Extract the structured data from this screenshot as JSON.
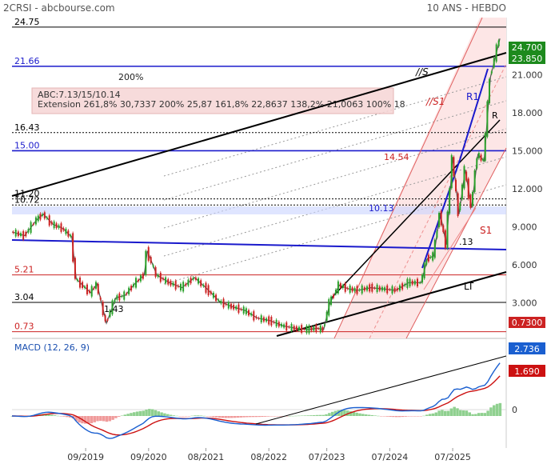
{
  "header": {
    "symbol": "2CRSI - abcbourse.com",
    "period": "10 ANS - HEBDO"
  },
  "chart_data": [
    {
      "type": "line",
      "name": "price",
      "y_ticks": [
        3,
        6,
        9,
        12,
        15,
        18,
        21
      ],
      "ylim": [
        0.2,
        25.5
      ],
      "x_tick_labels": [
        "09/2019",
        "09/2020",
        "08/2021",
        "08/2022",
        "07/2023",
        "07/2024",
        "07/2025"
      ],
      "x_tick_years": [
        2019.67,
        2020.67,
        2021.58,
        2022.58,
        2023.5,
        2024.5,
        2025.5
      ],
      "xlim": [
        2018.5,
        2026.35
      ],
      "series": [
        {
          "x": [
            2018.5,
            2018.7,
            2018.9,
            2019.0,
            2019.15,
            2019.3,
            2019.45,
            2019.52,
            2019.6,
            2019.75,
            2019.85,
            2020.0,
            2020.15,
            2020.3,
            2020.45,
            2020.6,
            2020.65,
            2020.8,
            2021.0,
            2021.2,
            2021.4,
            2021.6,
            2021.8,
            2022.0,
            2022.2,
            2022.4,
            2022.6,
            2022.8,
            2023.0,
            2023.2,
            2023.35,
            2023.45,
            2023.55,
            2023.7,
            2023.85,
            2024.0,
            2024.2,
            2024.4,
            2024.6,
            2024.8,
            2025.0,
            2025.1,
            2025.2,
            2025.3,
            2025.4,
            2025.5,
            2025.6,
            2025.7,
            2025.8,
            2025.9,
            2026.0,
            2026.1,
            2026.25
          ],
          "y": [
            8.6,
            8.3,
            9.6,
            10.0,
            9.2,
            8.9,
            8.2,
            4.9,
            4.5,
            3.8,
            4.5,
            1.4,
            3.4,
            3.6,
            4.5,
            5.2,
            7.1,
            5.2,
            4.6,
            4.2,
            5.0,
            4.1,
            3.1,
            2.7,
            2.4,
            1.8,
            1.6,
            1.2,
            1.0,
            0.9,
            1.0,
            0.9,
            3.0,
            4.4,
            4.1,
            4.0,
            4.2,
            4.1,
            4.0,
            4.6,
            4.6,
            6.5,
            6.7,
            10.1,
            7.6,
            14.5,
            10.0,
            13.5,
            10.5,
            14.7,
            14.2,
            20.8,
            23.85
          ]
        }
      ]
    },
    {
      "type": "line",
      "name": "macd",
      "y_ticks": [
        0
      ],
      "ylim": [
        -1.5,
        3.0
      ]
    }
  ],
  "levels": [
    {
      "label": "24.75",
      "value": 24.75,
      "color": "#000000"
    },
    {
      "label": "21.66",
      "value": 21.66,
      "color": "#1a1acc"
    },
    {
      "label": "16.43",
      "value": 16.43,
      "color": "#000000"
    },
    {
      "label": "15.00",
      "value": 15.0,
      "color": "#1a1acc"
    },
    {
      "label": "11.20",
      "value": 11.2,
      "color": "#000000"
    },
    {
      "label": "10.72",
      "value": 10.72,
      "color": "#000000"
    },
    {
      "label": "5.21",
      "value": 5.21,
      "color": "#cc2222"
    },
    {
      "label": "3.04",
      "value": 3.04,
      "color": "#000000"
    },
    {
      "label": "0.73",
      "value": 0.73,
      "color": "#cc2222"
    }
  ],
  "labels": {
    "pct_200": "200%",
    "abc_line1": "ABC:7.13/15/10.14",
    "abc_line2": "Extension 261,8% 30,7337 200% 25,87 161,8% 22,8637 138,2% 21,0063 100% 18",
    "s_line": "//S",
    "s1_line": "//S1",
    "r1": "R1",
    "r": "R",
    "s1": "S1",
    "lt": "LT",
    "v1454": "14.54",
    "v1013": "10.13",
    "v713": ".13",
    "v143": "1.43",
    "macd_title": "MACD (12, 26, 9)",
    "macd_zero": "0"
  },
  "badges": {
    "price_high": "24.700",
    "price_last": "23.850",
    "level_low": "0.7300",
    "macd": "2.736",
    "signal": "1.690"
  },
  "colors": {
    "up": "#2aa02a",
    "down": "#cc2222",
    "blue": "#1a1acc",
    "macd": "#1a5fd0",
    "signal": "#cc1111",
    "channel_fill": "#fde4e4"
  }
}
